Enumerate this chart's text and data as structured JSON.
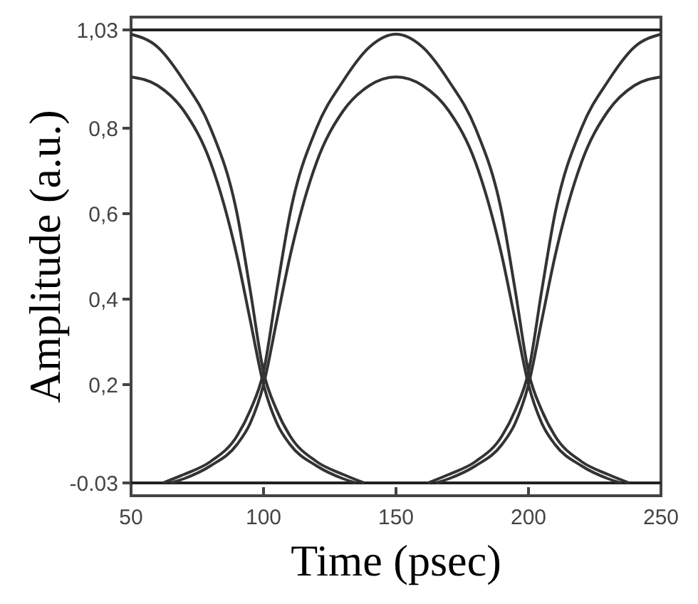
{
  "chart_data": {
    "type": "line",
    "xlabel": "Time (psec)",
    "ylabel": "Amplitude (a.u.)",
    "xlim": [
      50,
      250
    ],
    "xticks": [
      50,
      100,
      150,
      200,
      250
    ],
    "ylim": [
      -0.06,
      1.06
    ],
    "yticks": [
      {
        "value": -0.03,
        "label": "-0.03"
      },
      {
        "value": 0.2,
        "label": "0,2"
      },
      {
        "value": 0.4,
        "label": "0,4"
      },
      {
        "value": 0.6,
        "label": "0,6"
      },
      {
        "value": 0.8,
        "label": "0,8"
      },
      {
        "value": 1.03,
        "label": "1,03"
      }
    ],
    "series": [
      {
        "color": "#222222",
        "x": [
          50,
          250
        ],
        "values": [
          1.03,
          1.03
        ]
      },
      {
        "color": "#222222",
        "x": [
          50,
          250
        ],
        "values": [
          -0.03,
          -0.03
        ]
      },
      {
        "color": "#333333",
        "x": [
          50,
          60,
          70,
          80,
          90,
          95,
          100,
          105,
          110,
          120,
          130,
          138
        ],
        "values": [
          1.02,
          0.99,
          0.91,
          0.8,
          0.6,
          0.42,
          0.23,
          0.14,
          0.08,
          0.02,
          -0.01,
          -0.03
        ]
      },
      {
        "color": "#333333",
        "x": [
          62,
          70,
          80,
          90,
          95,
          100,
          105,
          110,
          120,
          130,
          140,
          150,
          160,
          170,
          180,
          190,
          195,
          200,
          205,
          210,
          220,
          230,
          238
        ],
        "values": [
          -0.03,
          -0.01,
          0.02,
          0.08,
          0.14,
          0.23,
          0.42,
          0.6,
          0.8,
          0.91,
          0.99,
          1.02,
          0.99,
          0.91,
          0.8,
          0.6,
          0.42,
          0.23,
          0.14,
          0.08,
          0.02,
          -0.01,
          -0.03
        ]
      },
      {
        "color": "#333333",
        "x": [
          162,
          170,
          180,
          190,
          195,
          200,
          205,
          210,
          220,
          230,
          240,
          250
        ],
        "values": [
          -0.03,
          -0.01,
          0.02,
          0.08,
          0.14,
          0.23,
          0.42,
          0.6,
          0.8,
          0.91,
          0.99,
          1.02
        ]
      },
      {
        "color": "#333333",
        "x": [
          50,
          60,
          70,
          80,
          90,
          95,
          100,
          105,
          110,
          120,
          130,
          135
        ],
        "values": [
          0.92,
          0.9,
          0.84,
          0.72,
          0.5,
          0.35,
          0.2,
          0.11,
          0.06,
          0.01,
          -0.02,
          -0.03
        ]
      },
      {
        "color": "#333333",
        "x": [
          65,
          70,
          80,
          90,
          95,
          100,
          105,
          110,
          120,
          130,
          140,
          150,
          160,
          170,
          180,
          190,
          195,
          200,
          205,
          210,
          220,
          230,
          235
        ],
        "values": [
          -0.03,
          -0.02,
          0.01,
          0.06,
          0.11,
          0.2,
          0.35,
          0.5,
          0.72,
          0.84,
          0.9,
          0.92,
          0.9,
          0.84,
          0.72,
          0.5,
          0.35,
          0.2,
          0.11,
          0.06,
          0.01,
          -0.02,
          -0.03
        ]
      },
      {
        "color": "#333333",
        "x": [
          165,
          170,
          180,
          190,
          195,
          200,
          205,
          210,
          220,
          230,
          240,
          250
        ],
        "values": [
          -0.03,
          -0.02,
          0.01,
          0.06,
          0.11,
          0.2,
          0.35,
          0.5,
          0.72,
          0.84,
          0.9,
          0.92
        ]
      }
    ]
  }
}
